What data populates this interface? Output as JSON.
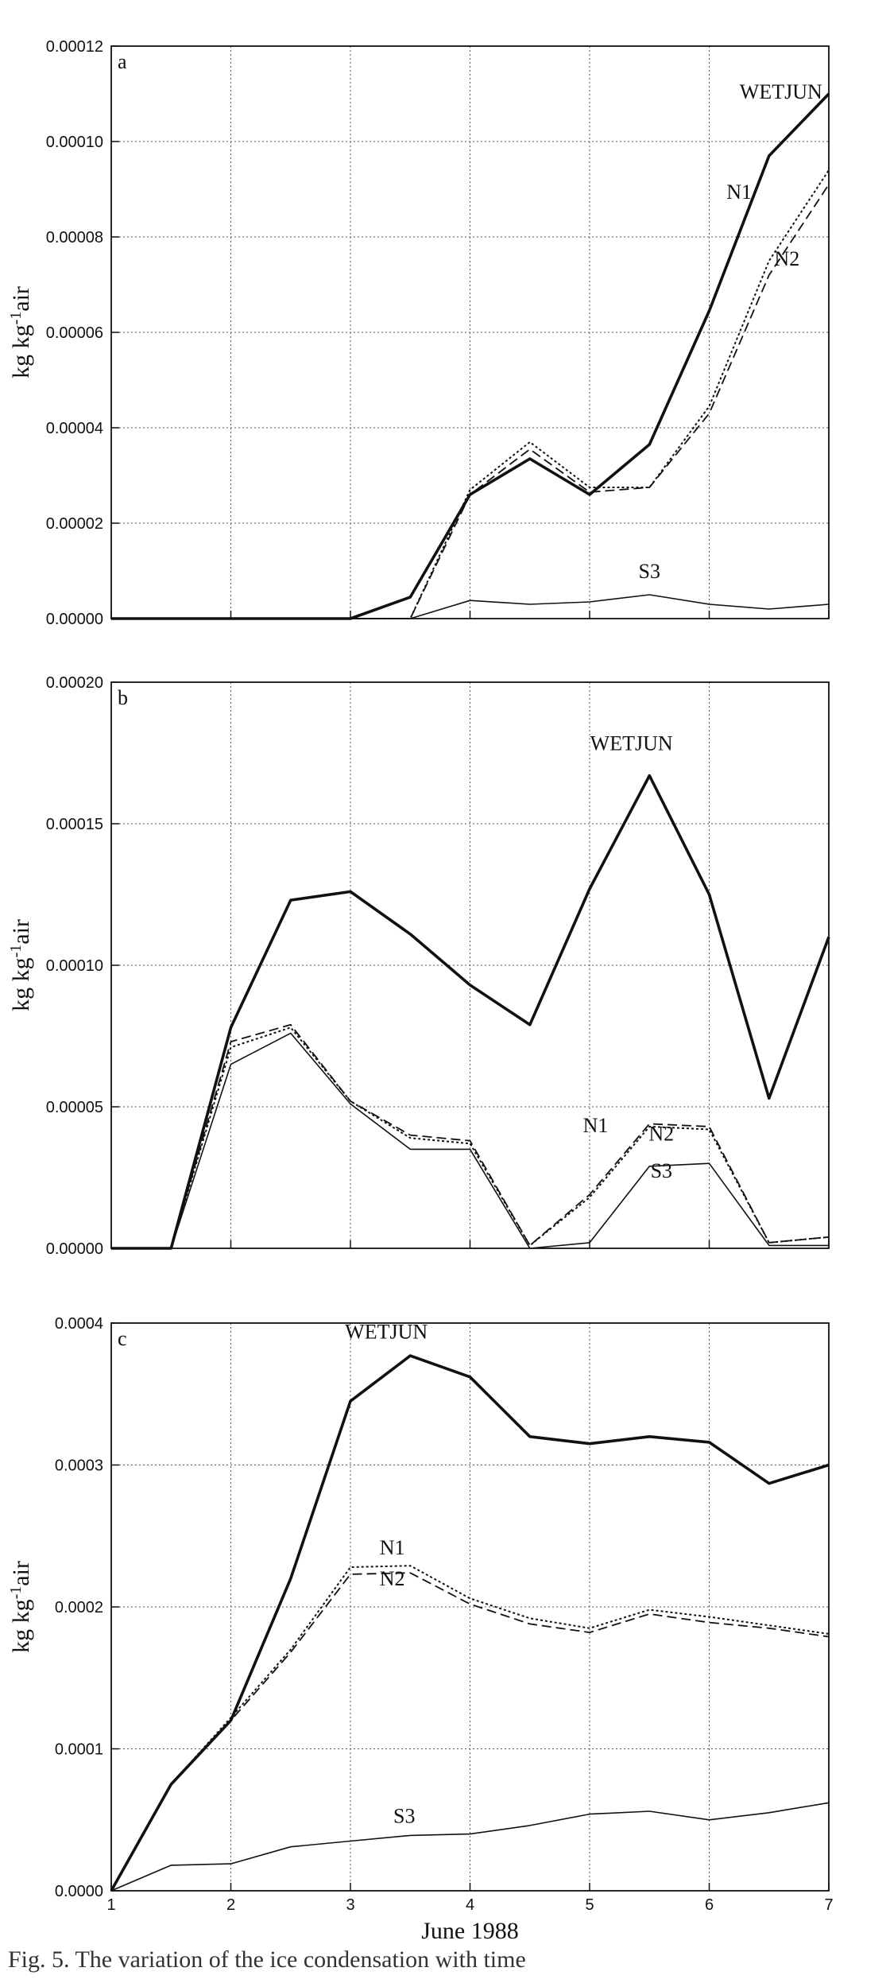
{
  "chart_data": [
    {
      "type": "line",
      "panel_label": "a",
      "xlabel": "",
      "ylabel": "kg kg",
      "ylabel_sup": "-1",
      "ylabel_suffix": "air",
      "xlim": [
        1,
        7
      ],
      "ylim": [
        0,
        0.00012
      ],
      "x_ticks": [
        "1",
        "2",
        "3",
        "4",
        "5",
        "6",
        "7"
      ],
      "y_ticks": [
        "0.00000",
        "0.00002",
        "0.00004",
        "0.00006",
        "0.00008",
        "0.00010",
        "0.00012"
      ],
      "grid": true,
      "x": [
        1,
        1.5,
        2,
        2.5,
        3,
        3.5,
        4,
        4.5,
        5,
        5.5,
        6,
        6.5,
        7
      ],
      "series": [
        {
          "name": "WETJUN",
          "style": "solid-thick",
          "values": [
            0,
            0,
            0,
            0,
            0,
            4.5e-06,
            2.6e-05,
            3.35e-05,
            2.6e-05,
            3.65e-05,
            6.45e-05,
            9.7e-05,
            0.00011
          ]
        },
        {
          "name": "N1",
          "style": "dotted",
          "values": [
            0,
            0,
            0,
            0,
            0,
            0,
            2.7e-05,
            3.7e-05,
            2.75e-05,
            2.75e-05,
            4.45e-05,
            7.5e-05,
            9.4e-05
          ]
        },
        {
          "name": "N2",
          "style": "dashed",
          "values": [
            0,
            0,
            0,
            0,
            0,
            0,
            2.6e-05,
            3.55e-05,
            2.65e-05,
            2.75e-05,
            4.3e-05,
            7.2e-05,
            9.1e-05
          ]
        },
        {
          "name": "S3",
          "style": "solid-thin",
          "values": [
            0,
            0,
            0,
            0,
            0,
            0,
            3.8e-06,
            3e-06,
            3.5e-06,
            5e-06,
            3e-06,
            2e-06,
            3e-06
          ]
        }
      ],
      "annotations": [
        {
          "text": "WETJUN",
          "x": 6.6,
          "y": 0.000109
        },
        {
          "text": "N1",
          "x": 6.25,
          "y": 8.8e-05
        },
        {
          "text": "N2",
          "x": 6.65,
          "y": 7.4e-05
        },
        {
          "text": "S3",
          "x": 5.5,
          "y": 8.5e-06
        }
      ]
    },
    {
      "type": "line",
      "panel_label": "b",
      "xlabel": "",
      "ylabel": "kg kg",
      "ylabel_sup": "-1",
      "ylabel_suffix": "air",
      "xlim": [
        1,
        7
      ],
      "ylim": [
        0,
        0.0002
      ],
      "x_ticks": [
        "1",
        "2",
        "3",
        "4",
        "5",
        "6",
        "7"
      ],
      "y_ticks": [
        "0.00000",
        "0.00005",
        "0.00010",
        "0.00015",
        "0.00020"
      ],
      "grid": true,
      "x": [
        1,
        1.5,
        2,
        2.5,
        3,
        3.5,
        4,
        4.5,
        5,
        5.5,
        6,
        6.5,
        7
      ],
      "series": [
        {
          "name": "WETJUN",
          "style": "solid-thick",
          "values": [
            0,
            0,
            7.8e-05,
            0.000123,
            0.000126,
            0.000111,
            9.3e-05,
            7.9e-05,
            0.000127,
            0.000167,
            0.000125,
            5.3e-05,
            0.00011
          ]
        },
        {
          "name": "N1",
          "style": "dashed",
          "values": [
            0,
            0,
            7.3e-05,
            7.9e-05,
            5.2e-05,
            4e-05,
            3.8e-05,
            1e-06,
            1.9e-05,
            4.4e-05,
            4.3e-05,
            2e-06,
            4e-06
          ]
        },
        {
          "name": "N2",
          "style": "dotted",
          "values": [
            0,
            0,
            7.1e-05,
            7.8e-05,
            5.2e-05,
            3.9e-05,
            3.7e-05,
            1e-06,
            1.8e-05,
            4.3e-05,
            4.2e-05,
            2e-06,
            4e-06
          ]
        },
        {
          "name": "S3",
          "style": "solid-thin",
          "values": [
            0,
            0,
            6.5e-05,
            7.6e-05,
            5.1e-05,
            3.5e-05,
            3.5e-05,
            0,
            2e-06,
            2.9e-05,
            3e-05,
            1e-06,
            1e-06
          ]
        }
      ],
      "annotations": [
        {
          "text": "WETJUN",
          "x": 5.35,
          "y": 0.000176
        },
        {
          "text": "N1",
          "x": 5.05,
          "y": 4.1e-05
        },
        {
          "text": "N2",
          "x": 5.6,
          "y": 3.8e-05
        },
        {
          "text": "S3",
          "x": 5.6,
          "y": 2.5e-05
        }
      ]
    },
    {
      "type": "line",
      "panel_label": "c",
      "xlabel": "June 1988",
      "ylabel": "kg kg",
      "ylabel_sup": "-1",
      "ylabel_suffix": "air",
      "xlim": [
        1,
        7
      ],
      "ylim": [
        0,
        0.0004
      ],
      "x_ticks": [
        "1",
        "2",
        "3",
        "4",
        "5",
        "6",
        "7"
      ],
      "y_ticks": [
        "0.0000",
        "0.0001",
        "0.0002",
        "0.0003",
        "0.0004"
      ],
      "grid": true,
      "x": [
        1,
        1.5,
        2,
        2.5,
        3,
        3.5,
        4,
        4.5,
        5,
        5.5,
        6,
        6.5,
        7
      ],
      "series": [
        {
          "name": "WETJUN",
          "style": "solid-thick",
          "values": [
            0,
            7.5e-05,
            0.00012,
            0.00022,
            0.000345,
            0.000377,
            0.000362,
            0.00032,
            0.000315,
            0.00032,
            0.000316,
            0.000287,
            0.0003
          ]
        },
        {
          "name": "N1",
          "style": "dotted",
          "values": [
            0,
            7.5e-05,
            0.000122,
            0.00017,
            0.000228,
            0.000229,
            0.000206,
            0.000192,
            0.000185,
            0.000198,
            0.000193,
            0.000187,
            0.000181
          ]
        },
        {
          "name": "N2",
          "style": "dashed",
          "values": [
            0,
            7.5e-05,
            0.00012,
            0.000168,
            0.000223,
            0.000224,
            0.000202,
            0.000188,
            0.000182,
            0.000195,
            0.000189,
            0.000185,
            0.000179
          ]
        },
        {
          "name": "S3",
          "style": "solid-thin",
          "values": [
            0,
            1.8e-05,
            1.9e-05,
            3.1e-05,
            3.5e-05,
            3.9e-05,
            4e-05,
            4.6e-05,
            5.4e-05,
            5.6e-05,
            5e-05,
            5.5e-05,
            6.2e-05
          ]
        }
      ],
      "annotations": [
        {
          "text": "WETJUN",
          "x": 3.3,
          "y": 0.000389
        },
        {
          "text": "N1",
          "x": 3.35,
          "y": 0.000237
        },
        {
          "text": "N2",
          "x": 3.35,
          "y": 0.000215
        },
        {
          "text": "S3",
          "x": 3.45,
          "y": 4.8e-05
        }
      ]
    }
  ],
  "caption": "Fig. 5. The variation of the ice condensation with time"
}
